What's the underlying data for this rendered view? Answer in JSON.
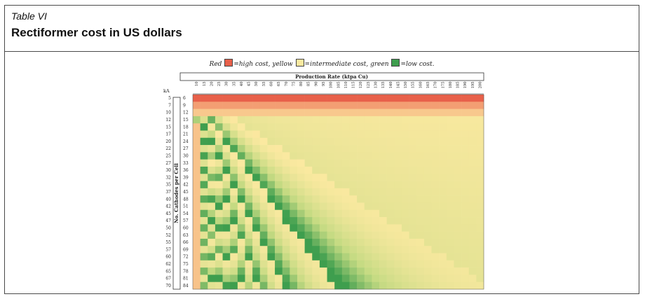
{
  "table": {
    "label": "Table VI",
    "title": "Rectiformer cost in US dollars"
  },
  "legend": {
    "red_word": "Red",
    "red_text": "=high cost, yellow",
    "yellow_text": "=intermediate cost, green",
    "green_text": "=low cost.",
    "colors": {
      "red": "#e8604a",
      "yellow": "#fbe9a0",
      "green": "#3e9e4e"
    }
  },
  "chart_data": {
    "type": "heatmap",
    "column_header": "Production Rate (ktpa Cu)",
    "row_header": "No. Cathodes per Cell",
    "ka_header": "kA",
    "production_rates": [
      10,
      15,
      20,
      25,
      30,
      35,
      40,
      45,
      50,
      55,
      60,
      65,
      70,
      75,
      80,
      85,
      90,
      95,
      100,
      105,
      110,
      115,
      120,
      125,
      130,
      135,
      140,
      145,
      150,
      155,
      160,
      165,
      170,
      175,
      180,
      185,
      190,
      195,
      200
    ],
    "ka": [
      5,
      7,
      10,
      12,
      15,
      17,
      20,
      22,
      25,
      27,
      30,
      32,
      35,
      37,
      40,
      42,
      45,
      47,
      50,
      52,
      55,
      57,
      60,
      62,
      65,
      67,
      70
    ],
    "cathodes_per_cell": [
      6,
      9,
      12,
      15,
      18,
      21,
      24,
      27,
      30,
      33,
      36,
      39,
      42,
      45,
      48,
      51,
      54,
      57,
      60,
      63,
      66,
      69,
      72,
      75,
      78,
      81,
      84
    ]
  }
}
